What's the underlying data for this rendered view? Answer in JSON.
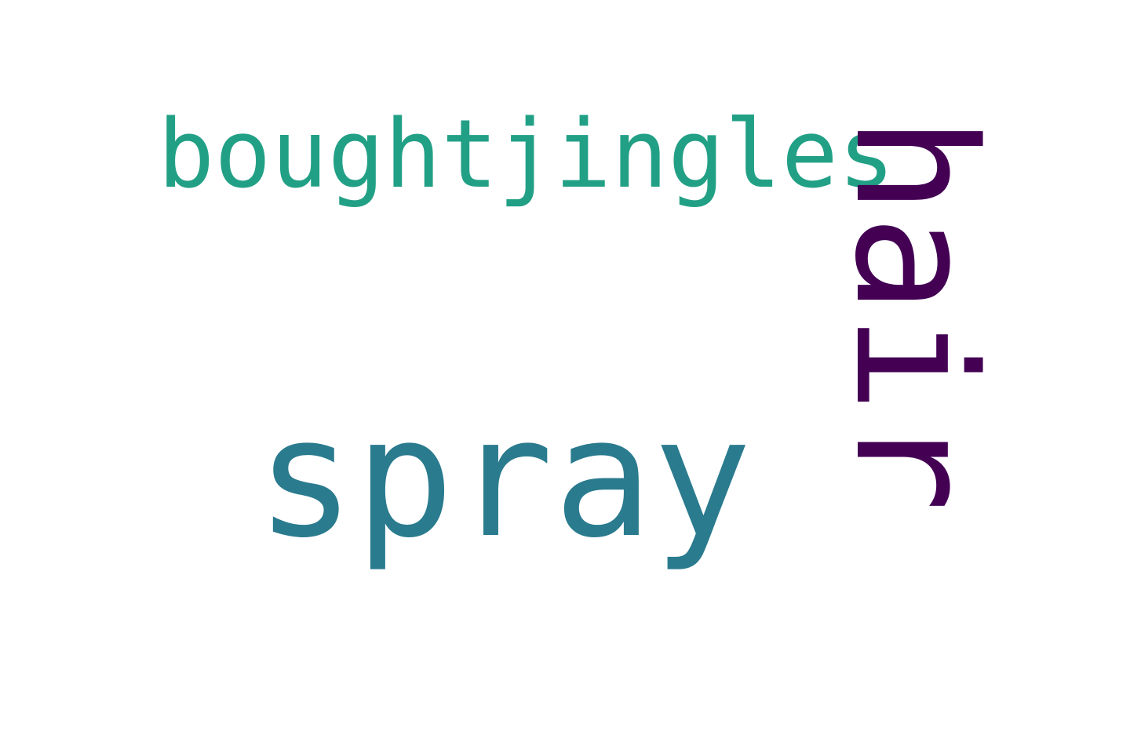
{
  "words": [
    {
      "text": "boughtjingles",
      "color": "#22a086"
    },
    {
      "text": "spray",
      "color": "#2a7b8e"
    },
    {
      "text": "hair",
      "color": "#440154"
    }
  ]
}
